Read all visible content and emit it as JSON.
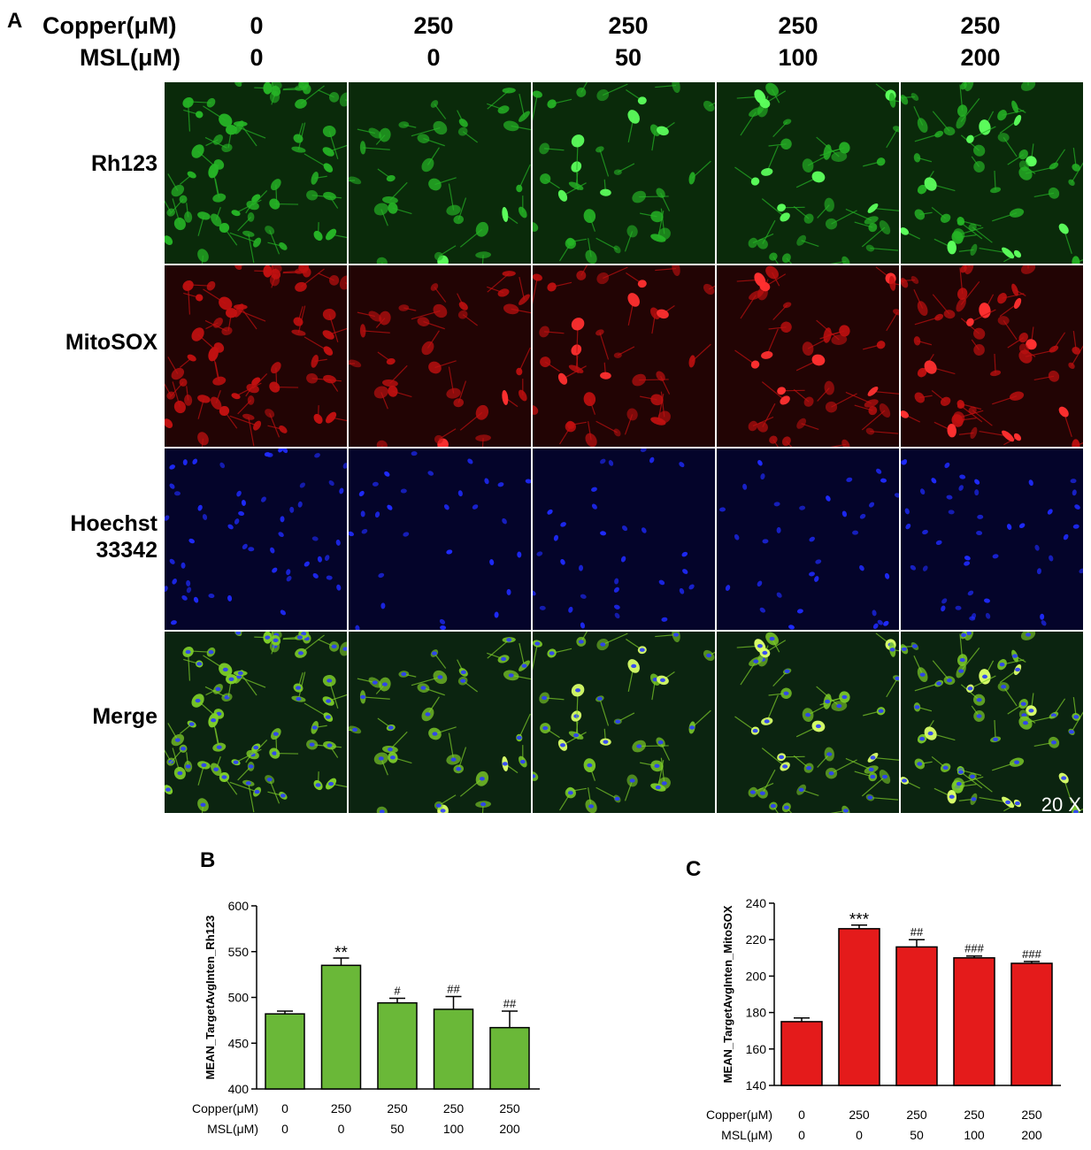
{
  "panel_a": {
    "letter": "A",
    "copper_label": "Copper(μM)",
    "msl_label": "MSL(μM)",
    "columns": [
      {
        "copper": "0",
        "msl": "0"
      },
      {
        "copper": "250",
        "msl": "0"
      },
      {
        "copper": "250",
        "msl": "50"
      },
      {
        "copper": "250",
        "msl": "100"
      },
      {
        "copper": "250",
        "msl": "200"
      }
    ],
    "rows": [
      {
        "label": "Rh123",
        "channel": "green"
      },
      {
        "label": "MitoSOX",
        "channel": "red"
      },
      {
        "label": "Hoechst 33342",
        "channel": "blue"
      },
      {
        "label": "Merge",
        "channel": "merge"
      }
    ],
    "magnification": "20 X",
    "channel_colors": {
      "green": "#2bd12b",
      "red": "#e01515",
      "blue": "#1a1aff",
      "merge": "#8fd63a"
    }
  },
  "chart_data": [
    {
      "panel": "B",
      "type": "bar",
      "ylabel": "MEAN_TargetAvgInten_Rh123",
      "ylim": [
        400,
        600
      ],
      "yticks": [
        400,
        450,
        500,
        550,
        600
      ],
      "row_labels": [
        "Copper(μM)",
        "MSL(μM)"
      ],
      "categories": [
        {
          "copper": "0",
          "msl": "0"
        },
        {
          "copper": "250",
          "msl": "0"
        },
        {
          "copper": "250",
          "msl": "50"
        },
        {
          "copper": "250",
          "msl": "100"
        },
        {
          "copper": "250",
          "msl": "200"
        }
      ],
      "values": [
        482,
        535,
        494,
        487,
        467
      ],
      "errors": [
        3,
        8,
        5,
        14,
        18
      ],
      "annotations": [
        "",
        "**",
        "#",
        "##",
        "##"
      ],
      "bar_color": "#6ab838"
    },
    {
      "panel": "C",
      "type": "bar",
      "ylabel": "MEAN_TargetAvgInten_MitoSOX",
      "ylim": [
        140,
        240
      ],
      "yticks": [
        140,
        160,
        180,
        200,
        220,
        240
      ],
      "row_labels": [
        "Copper(μM)",
        "MSL(μM)"
      ],
      "categories": [
        {
          "copper": "0",
          "msl": "0"
        },
        {
          "copper": "250",
          "msl": "0"
        },
        {
          "copper": "250",
          "msl": "50"
        },
        {
          "copper": "250",
          "msl": "100"
        },
        {
          "copper": "250",
          "msl": "200"
        }
      ],
      "values": [
        175,
        226,
        216,
        210,
        207
      ],
      "errors": [
        2,
        2,
        4,
        1,
        1
      ],
      "annotations": [
        "",
        "***",
        "##",
        "###",
        "###"
      ],
      "bar_color": "#e41b1b"
    }
  ]
}
